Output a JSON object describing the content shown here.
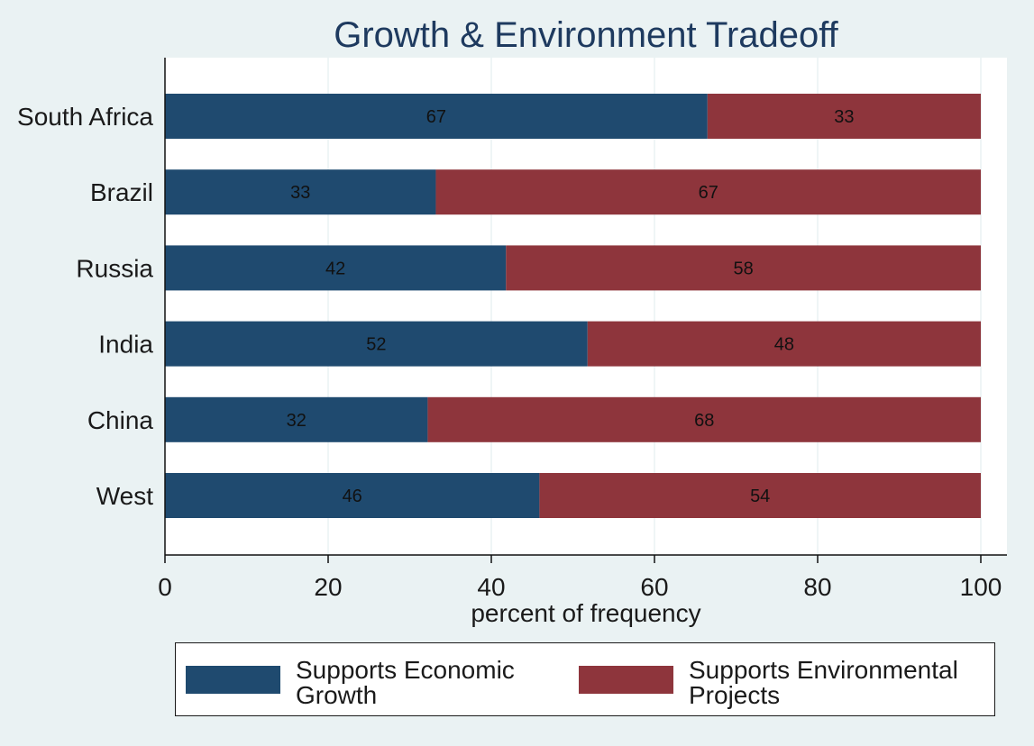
{
  "chart_data": {
    "type": "bar",
    "orientation": "horizontal",
    "stacked": true,
    "title": "Growth & Environment Tradeoff",
    "xlabel": "percent of frequency",
    "ylabel": "",
    "xlim": [
      0,
      100
    ],
    "xticks": [
      0,
      20,
      40,
      60,
      80,
      100
    ],
    "grid": true,
    "categories": [
      "South Africa",
      "Brazil",
      "Russia",
      "India",
      "China",
      "West"
    ],
    "series": [
      {
        "name": "Supports Economic Growth",
        "values": [
          67,
          33,
          42,
          52,
          32,
          46
        ],
        "exact_values": [
          66.5,
          33.2,
          41.8,
          51.8,
          32.2,
          45.9
        ],
        "color": "#1F4A6F"
      },
      {
        "name": "Supports Environmental Projects",
        "values": [
          33,
          67,
          58,
          48,
          68,
          54
        ],
        "color": "#8E353C"
      }
    ],
    "legend": {
      "position": "bottom",
      "items": [
        {
          "label": "Supports Economic\nGrowth",
          "color": "#1F4A6F"
        },
        {
          "label": "Supports Environmental\nProjects",
          "color": "#8E353C"
        }
      ]
    }
  }
}
